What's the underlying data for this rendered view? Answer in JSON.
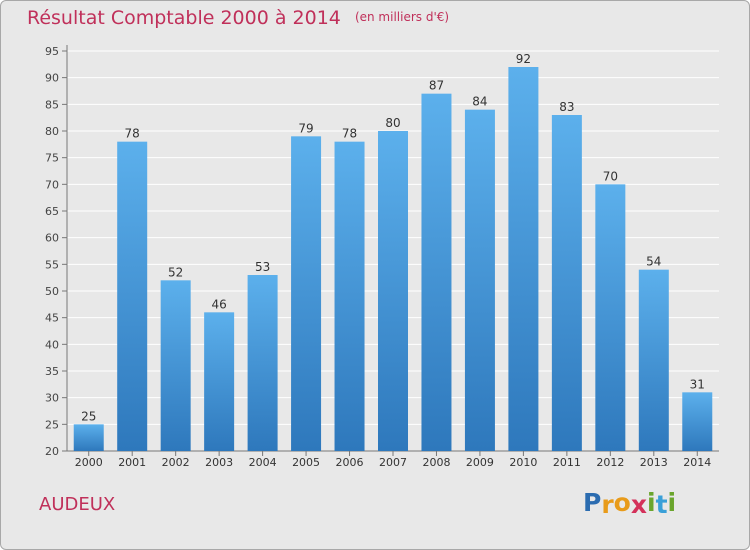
{
  "chart_data": {
    "type": "bar",
    "title": "Résultat Comptable 2000 à 2014",
    "unit_label": "(en milliers d'€)",
    "categories": [
      "2000",
      "2001",
      "2002",
      "2003",
      "2004",
      "2005",
      "2006",
      "2007",
      "2008",
      "2009",
      "2010",
      "2011",
      "2012",
      "2013",
      "2014"
    ],
    "values": [
      25,
      78,
      52,
      46,
      53,
      79,
      78,
      80,
      87,
      84,
      92,
      83,
      70,
      54,
      31
    ],
    "ylim": [
      20,
      95
    ],
    "ytick_step": 5,
    "grid": true,
    "bar_color_top": "#5cb0ec",
    "bar_color_bottom": "#2e78bc",
    "xlabel": "",
    "ylabel": ""
  },
  "commune_name": "AUDEUX",
  "logo": {
    "text": "Proxiti",
    "letters": [
      "P",
      "r",
      "o",
      "x",
      "i",
      "t",
      "i"
    ],
    "colors": [
      "#2b6cb0",
      "#e89b1a",
      "#e89b1a",
      "#d4315a",
      "#6aa52c",
      "#3aa0d8",
      "#6aa52c"
    ]
  },
  "colors": {
    "accent": "#c0305a",
    "background": "#e8e8e8",
    "grid": "#ffffff"
  }
}
